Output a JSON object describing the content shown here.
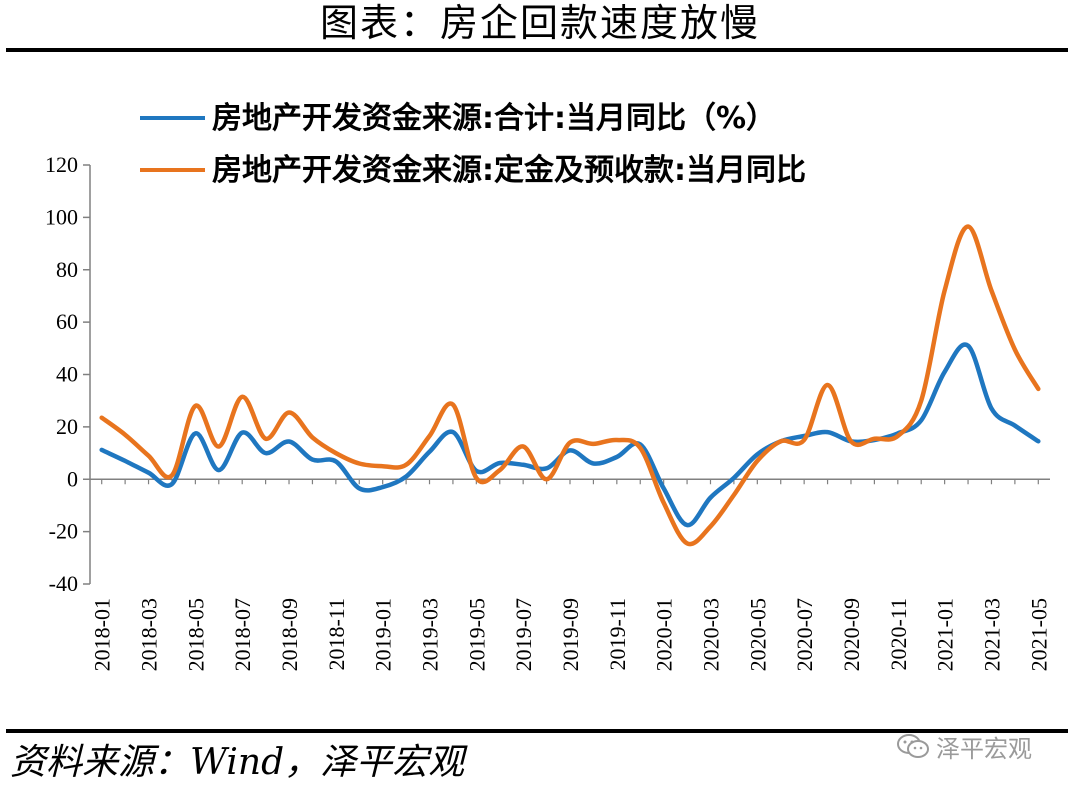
{
  "page": {
    "title": "图表：房企回款速度放慢",
    "source": "资料来源：Wind，泽平宏观",
    "watermark": "泽平宏观"
  },
  "chart_data": {
    "type": "line",
    "title": "",
    "xlabel": "",
    "ylabel": "",
    "ylim": [
      -40,
      120
    ],
    "yticks": [
      -40,
      -20,
      0,
      20,
      40,
      60,
      80,
      100,
      120
    ],
    "grid": false,
    "legend_position": "top",
    "x": [
      "2018-01",
      "2018-02",
      "2018-03",
      "2018-04",
      "2018-05",
      "2018-06",
      "2018-07",
      "2018-08",
      "2018-09",
      "2018-10",
      "2018-11",
      "2018-12",
      "2019-01",
      "2019-02",
      "2019-03",
      "2019-04",
      "2019-05",
      "2019-06",
      "2019-07",
      "2019-08",
      "2019-09",
      "2019-10",
      "2019-11",
      "2019-12",
      "2020-01",
      "2020-02",
      "2020-03",
      "2020-04",
      "2020-05",
      "2020-06",
      "2020-07",
      "2020-08",
      "2020-09",
      "2020-10",
      "2020-11",
      "2020-12",
      "2021-01",
      "2021-02",
      "2021-03",
      "2021-04",
      "2021-05"
    ],
    "x_tick_labels": [
      "2018-01",
      "2018-03",
      "2018-05",
      "2018-07",
      "2018-09",
      "2018-11",
      "2019-01",
      "2019-03",
      "2019-05",
      "2019-07",
      "2019-09",
      "2019-11",
      "2020-01",
      "2020-03",
      "2020-05",
      "2020-07",
      "2020-09",
      "2020-11",
      "2021-01",
      "2021-03",
      "2021-05"
    ],
    "series": [
      {
        "name": "房地产开发资金来源:合计:当月同比（%）",
        "color": "#1f77c0",
        "values": [
          11.2,
          7.0,
          2.5,
          -1.8,
          17.5,
          3.5,
          17.8,
          10.0,
          14.4,
          7.5,
          6.8,
          -3.5,
          -3.0,
          1.0,
          10.5,
          18.0,
          3.2,
          6.2,
          5.5,
          4.2,
          11.0,
          6.0,
          8.5,
          13.3,
          -3.5,
          -17.5,
          -7.0,
          0.5,
          9.5,
          14.5,
          16.5,
          18.0,
          14.5,
          15.0,
          17.5,
          22.5,
          41.0,
          51.0,
          27.0,
          20.5,
          14.5
        ]
      },
      {
        "name": "房地产开发资金来源:定金及预收款:当月同比",
        "color": "#e8741e",
        "values": [
          23.5,
          17.0,
          9.0,
          1.5,
          28.0,
          12.5,
          31.5,
          15.5,
          25.5,
          16.0,
          10.0,
          6.0,
          5.0,
          5.5,
          16.5,
          28.5,
          0.5,
          3.5,
          12.5,
          0.0,
          14.0,
          13.5,
          15.0,
          12.0,
          -9.0,
          -24.5,
          -18.0,
          -6.0,
          7.0,
          14.5,
          15.0,
          36.0,
          14.5,
          15.5,
          16.5,
          30.0,
          72.0,
          96.5,
          72.0,
          49.5,
          34.5
        ]
      }
    ]
  }
}
